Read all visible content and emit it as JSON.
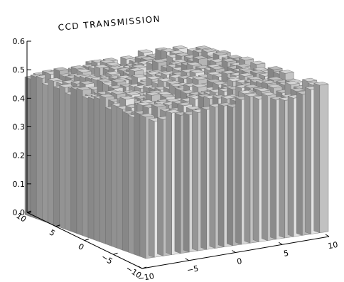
{
  "chart_data": {
    "type": "surface3d",
    "title": "CCD TRANSMISSION",
    "z_axis": {
      "range": [
        0.0,
        0.6
      ],
      "ticks": [
        "0.0",
        "0.1",
        "0.2",
        "0.3",
        "0.4",
        "0.5",
        "0.6"
      ]
    },
    "x_axis": {
      "range": [
        -10,
        10
      ],
      "ticks": [
        "−10",
        "−5",
        "0",
        "5",
        "10"
      ]
    },
    "y_axis": {
      "range": [
        -10,
        10
      ],
      "ticks": [
        "−10",
        "−5",
        "0",
        "5",
        "10"
      ]
    },
    "surface": {
      "grid": 21,
      "mean_transmission": 0.45,
      "noise_amplitude": 0.02,
      "description_values": "near-uniform CCD transmission around 0.45 with small pixel-to-pixel variation"
    },
    "colors": {
      "face_light": "#dcdcdc",
      "face_mid": "#bdbdbd",
      "face_dark": "#8e8e8e",
      "top": "#c8c8c8"
    }
  }
}
